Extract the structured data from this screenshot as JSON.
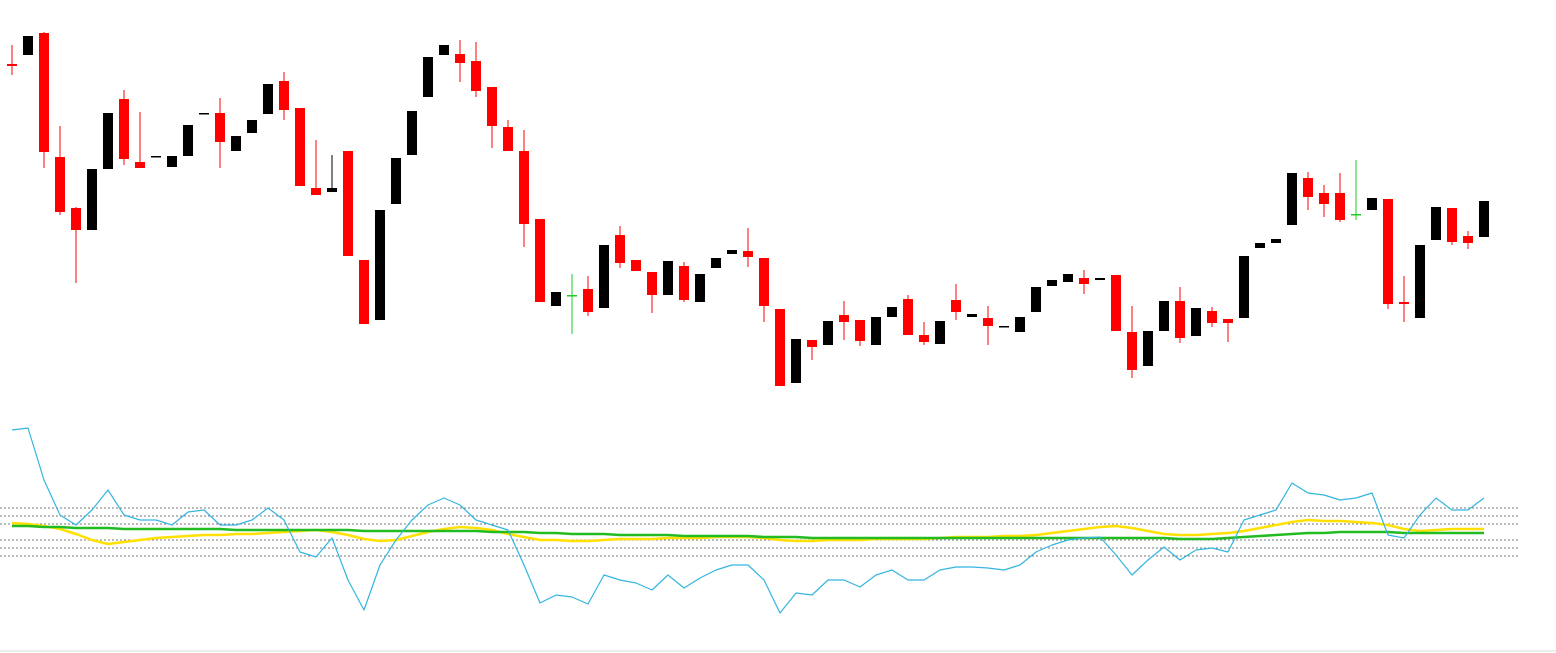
{
  "chart_data": [
    {
      "type": "candlestick",
      "ylim": [
        0,
        400
      ],
      "up_color": "#000000",
      "down_color": "#ff0000",
      "doji_color": "#22cc22",
      "open": [
        336,
        345,
        367,
        243,
        192,
        170,
        231,
        301,
        238,
        243,
        233,
        244,
        286,
        287,
        249,
        267,
        286,
        319,
        292,
        212,
        208,
        249,
        140,
        80,
        196,
        245,
        303,
        345,
        346,
        339,
        313,
        273,
        249,
        181,
        94,
        105,
        111,
        92,
        165,
        140,
        128,
        105,
        134,
        98,
        132,
        146,
        149,
        142,
        91,
        17,
        60,
        55,
        85,
        80,
        55,
        83,
        101,
        65,
        56,
        100,
        83,
        82,
        73,
        68,
        88,
        114,
        118,
        122,
        120,
        125,
        68,
        34,
        69,
        99,
        64,
        89,
        81,
        82,
        152,
        157,
        175,
        222,
        207,
        207,
        186,
        190,
        201,
        98,
        82,
        160,
        192,
        164,
        163
      ],
      "high": [
        355,
        364,
        368,
        274,
        193,
        231,
        287,
        310,
        288,
        244,
        244,
        275,
        287,
        302,
        264,
        280,
        316,
        328,
        292,
        260,
        245,
        249,
        140,
        190,
        242,
        289,
        343,
        355,
        360,
        358,
        313,
        280,
        270,
        181,
        108,
        126,
        124,
        155,
        174,
        140,
        128,
        139,
        138,
        126,
        142,
        150,
        172,
        142,
        91,
        61,
        60,
        79,
        99,
        80,
        83,
        93,
        105,
        78,
        79,
        116,
        86,
        94,
        74,
        83,
        113,
        120,
        126,
        130,
        122,
        125,
        94,
        69,
        99,
        113,
        92,
        93,
        81,
        144,
        157,
        161,
        227,
        228,
        215,
        227,
        240,
        202,
        201,
        124,
        155,
        193,
        192,
        169,
        199
      ],
      "low": [
        325,
        345,
        232,
        185,
        117,
        170,
        231,
        235,
        232,
        243,
        233,
        244,
        286,
        232,
        249,
        267,
        286,
        280,
        214,
        205,
        208,
        144,
        76,
        80,
        196,
        245,
        303,
        345,
        318,
        303,
        252,
        249,
        153,
        98,
        94,
        66,
        84,
        92,
        132,
        129,
        87,
        105,
        98,
        98,
        132,
        146,
        133,
        78,
        14,
        17,
        40,
        55,
        60,
        54,
        55,
        83,
        65,
        55,
        56,
        80,
        83,
        55,
        73,
        68,
        88,
        114,
        118,
        106,
        120,
        69,
        22,
        34,
        69,
        57,
        64,
        73,
        58,
        82,
        152,
        157,
        175,
        190,
        183,
        178,
        180,
        190,
        91,
        78,
        82,
        160,
        155,
        151,
        163
      ],
      "close": [
        334,
        364,
        248,
        188,
        170,
        231,
        287,
        241,
        232,
        244,
        244,
        275,
        287,
        258,
        264,
        280,
        316,
        290,
        214,
        205,
        212,
        144,
        76,
        190,
        242,
        289,
        343,
        355,
        337,
        309,
        274,
        249,
        176,
        98,
        108,
        105,
        88,
        155,
        137,
        129,
        105,
        139,
        100,
        126,
        142,
        150,
        143,
        94,
        14,
        61,
        53,
        79,
        78,
        59,
        83,
        93,
        65,
        58,
        79,
        88,
        86,
        74,
        74,
        83,
        113,
        120,
        126,
        116,
        122,
        69,
        30,
        69,
        99,
        62,
        92,
        77,
        77,
        144,
        157,
        161,
        227,
        203,
        196,
        180,
        186,
        202,
        96,
        96,
        155,
        193,
        158,
        157,
        199
      ]
    },
    {
      "type": "line",
      "ylim": [
        -110,
        110
      ],
      "levels": [
        24,
        16,
        8,
        -8,
        -16,
        -24
      ],
      "level_color": "#777777",
      "series": [
        {
          "color": "#ffe000",
          "width": 2.5,
          "values": [
            9,
            8,
            6,
            3,
            -2,
            -8,
            -12,
            -10,
            -8,
            -6,
            -5,
            -4,
            -3,
            -3,
            -2,
            -2,
            -1,
            0,
            1,
            2,
            0,
            -3,
            -7,
            -9,
            -8,
            -4,
            0,
            3,
            5,
            4,
            2,
            -2,
            -5,
            -8,
            -8,
            -9,
            -9,
            -8,
            -7,
            -7,
            -7,
            -6,
            -6,
            -6,
            -5,
            -5,
            -5,
            -6,
            -8,
            -9,
            -9,
            -8,
            -8,
            -8,
            -7,
            -7,
            -7,
            -7,
            -6,
            -5,
            -5,
            -5,
            -4,
            -4,
            -3,
            -1,
            1,
            3,
            5,
            6,
            4,
            1,
            -2,
            -3,
            -3,
            -2,
            -1,
            1,
            4,
            7,
            10,
            12,
            11,
            11,
            10,
            9,
            7,
            3,
            1,
            2,
            3,
            3,
            3
          ]
        },
        {
          "color": "#22bb22",
          "width": 2.5,
          "values": [
            6,
            6,
            5,
            5,
            4,
            4,
            4,
            3,
            3,
            3,
            3,
            3,
            3,
            3,
            2,
            2,
            2,
            2,
            2,
            2,
            2,
            2,
            1,
            1,
            1,
            1,
            1,
            1,
            1,
            1,
            0,
            0,
            0,
            -1,
            -1,
            -2,
            -2,
            -2,
            -3,
            -3,
            -3,
            -3,
            -4,
            -4,
            -4,
            -4,
            -4,
            -5,
            -5,
            -5,
            -6,
            -6,
            -6,
            -6,
            -6,
            -6,
            -6,
            -6,
            -6,
            -6,
            -6,
            -6,
            -6,
            -6,
            -6,
            -6,
            -6,
            -6,
            -6,
            -6,
            -6,
            -6,
            -6,
            -7,
            -7,
            -7,
            -6,
            -5,
            -4,
            -3,
            -2,
            -1,
            -1,
            0,
            0,
            0,
            0,
            -1,
            -1,
            -1,
            -1,
            -1,
            -1
          ]
        },
        {
          "color": "#33b5e0",
          "width": 1.2,
          "values": [
            102,
            104,
            52,
            17,
            7,
            22,
            42,
            17,
            12,
            12,
            7,
            20,
            22,
            7,
            7,
            12,
            24,
            12,
            -20,
            -25,
            -6,
            -48,
            -78,
            -33,
            -8,
            12,
            27,
            34,
            27,
            12,
            7,
            2,
            -33,
            -71,
            -63,
            -65,
            -72,
            -43,
            -48,
            -51,
            -58,
            -43,
            -56,
            -46,
            -38,
            -33,
            -33,
            -48,
            -81,
            -61,
            -63,
            -48,
            -48,
            -55,
            -43,
            -38,
            -48,
            -48,
            -38,
            -35,
            -35,
            -36,
            -38,
            -33,
            -20,
            -13,
            -8,
            -6,
            -5,
            -23,
            -43,
            -28,
            -15,
            -28,
            -18,
            -16,
            -20,
            12,
            17,
            22,
            49,
            39,
            37,
            32,
            34,
            39,
            -3,
            -6,
            17,
            34,
            22,
            22,
            34
          ]
        }
      ]
    }
  ]
}
